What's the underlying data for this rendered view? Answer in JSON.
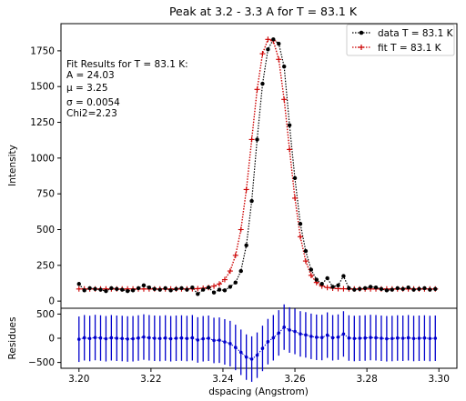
{
  "chart_data": [
    {
      "type": "scatter",
      "title": "Peak at 3.2 - 3.3 A for T = 83.1 K",
      "ylabel": "Intensity",
      "xlabel": "",
      "xlim": [
        3.195,
        3.305
      ],
      "ylim": [
        -50,
        1940
      ],
      "yticks": [
        0,
        250,
        500,
        750,
        1000,
        1250,
        1500,
        1750
      ],
      "grid": false,
      "legend_position": "top-right",
      "series": [
        {
          "name": "data T = 83.1 K",
          "color": "#000000",
          "marker": "dot",
          "line": "dotted",
          "x": [
            3.2,
            3.2015,
            3.203,
            3.2045,
            3.206,
            3.2075,
            3.209,
            3.2105,
            3.212,
            3.2135,
            3.215,
            3.2165,
            3.218,
            3.2195,
            3.221,
            3.2225,
            3.224,
            3.2255,
            3.227,
            3.2285,
            3.23,
            3.2315,
            3.233,
            3.2345,
            3.236,
            3.2375,
            3.239,
            3.2405,
            3.242,
            3.2435,
            3.245,
            3.2465,
            3.248,
            3.2495,
            3.251,
            3.2525,
            3.254,
            3.2555,
            3.257,
            3.2585,
            3.26,
            3.2615,
            3.263,
            3.2645,
            3.266,
            3.2675,
            3.269,
            3.2705,
            3.272,
            3.2735,
            3.275,
            3.2765,
            3.278,
            3.2795,
            3.281,
            3.2825,
            3.284,
            3.2855,
            3.287,
            3.2885,
            3.29,
            3.2915,
            3.293,
            3.2945,
            3.296,
            3.2975,
            3.299
          ],
          "y": [
            120,
            75,
            90,
            85,
            80,
            70,
            90,
            85,
            80,
            70,
            75,
            90,
            110,
            95,
            85,
            80,
            90,
            75,
            85,
            90,
            80,
            95,
            50,
            80,
            95,
            60,
            80,
            75,
            100,
            130,
            210,
            390,
            700,
            1130,
            1520,
            1760,
            1830,
            1800,
            1640,
            1230,
            860,
            540,
            350,
            220,
            150,
            120,
            160,
            100,
            110,
            175,
            90,
            80,
            85,
            90,
            100,
            95,
            85,
            75,
            80,
            90,
            85,
            95,
            80,
            85,
            90,
            80,
            85
          ]
        },
        {
          "name": "fit T = 83.1 K",
          "color": "#cc0000",
          "marker": "plus",
          "line": "dotted",
          "x": [
            3.2,
            3.2015,
            3.203,
            3.2045,
            3.206,
            3.2075,
            3.209,
            3.2105,
            3.212,
            3.2135,
            3.215,
            3.2165,
            3.218,
            3.2195,
            3.221,
            3.2225,
            3.224,
            3.2255,
            3.227,
            3.2285,
            3.23,
            3.2315,
            3.233,
            3.2345,
            3.236,
            3.2375,
            3.239,
            3.2405,
            3.242,
            3.2435,
            3.245,
            3.2465,
            3.248,
            3.2495,
            3.251,
            3.2525,
            3.254,
            3.2555,
            3.257,
            3.2585,
            3.26,
            3.2615,
            3.263,
            3.2645,
            3.266,
            3.2675,
            3.269,
            3.2705,
            3.272,
            3.2735,
            3.275,
            3.2765,
            3.278,
            3.2795,
            3.281,
            3.2825,
            3.284,
            3.2855,
            3.287,
            3.2885,
            3.29,
            3.2915,
            3.293,
            3.2945,
            3.296,
            3.2975,
            3.299
          ],
          "y": [
            85,
            85,
            85,
            85,
            85,
            85,
            85,
            85,
            85,
            85,
            85,
            85,
            85,
            85,
            85,
            85,
            85,
            85,
            85,
            85,
            85,
            86,
            87,
            90,
            95,
            105,
            120,
            150,
            210,
            320,
            500,
            780,
            1130,
            1480,
            1730,
            1830,
            1820,
            1690,
            1410,
            1060,
            720,
            450,
            280,
            180,
            130,
            105,
            95,
            90,
            87,
            86,
            85,
            85,
            85,
            85,
            85,
            85,
            85,
            85,
            85,
            85,
            85,
            85,
            85,
            85,
            85,
            85,
            85
          ]
        }
      ],
      "annotation": {
        "lines": [
          "Fit Results for T = 83.1 K:",
          "A = 24.03",
          "μ = 3.25",
          "σ = 0.0054",
          "Chi2=2.23"
        ]
      }
    },
    {
      "type": "scatter",
      "title": "",
      "ylabel": "Residues",
      "xlabel": "dspacing (Angstrom)",
      "xlim": [
        3.195,
        3.305
      ],
      "ylim": [
        -620,
        620
      ],
      "yticks": [
        -500,
        0,
        500
      ],
      "xticks": [
        3.2,
        3.22,
        3.24,
        3.26,
        3.28,
        3.3
      ],
      "xtick_labels": [
        "3.20",
        "3.22",
        "3.24",
        "3.26",
        "3.28",
        "3.30"
      ],
      "ytick_labels": [
        "−500",
        "0",
        "500"
      ],
      "grid": false,
      "series": [
        {
          "color": "#0000cc",
          "marker": "dot",
          "errorbar": 470,
          "x": [
            3.2,
            3.2015,
            3.203,
            3.2045,
            3.206,
            3.2075,
            3.209,
            3.2105,
            3.212,
            3.2135,
            3.215,
            3.2165,
            3.218,
            3.2195,
            3.221,
            3.2225,
            3.224,
            3.2255,
            3.227,
            3.2285,
            3.23,
            3.2315,
            3.233,
            3.2345,
            3.236,
            3.2375,
            3.239,
            3.2405,
            3.242,
            3.2435,
            3.245,
            3.2465,
            3.248,
            3.2495,
            3.251,
            3.2525,
            3.254,
            3.2555,
            3.257,
            3.2585,
            3.26,
            3.2615,
            3.263,
            3.2645,
            3.266,
            3.2675,
            3.269,
            3.2705,
            3.272,
            3.2735,
            3.275,
            3.2765,
            3.278,
            3.2795,
            3.281,
            3.2825,
            3.284,
            3.2855,
            3.287,
            3.2885,
            3.29,
            3.2915,
            3.293,
            3.2945,
            3.296,
            3.2975,
            3.299
          ],
          "y": [
            -20,
            10,
            -5,
            15,
            5,
            -10,
            10,
            0,
            -5,
            -15,
            -10,
            5,
            25,
            10,
            0,
            -5,
            5,
            -10,
            0,
            5,
            -5,
            10,
            -35,
            -10,
            0,
            -45,
            -40,
            -75,
            -110,
            -190,
            -290,
            -390,
            -430,
            -350,
            -210,
            -70,
            10,
            110,
            230,
            170,
            140,
            90,
            70,
            40,
            20,
            15,
            65,
            10,
            23,
            89,
            5,
            -5,
            0,
            5,
            15,
            10,
            0,
            -10,
            -5,
            5,
            0,
            10,
            -5,
            0,
            5,
            -5,
            0
          ]
        }
      ]
    }
  ]
}
